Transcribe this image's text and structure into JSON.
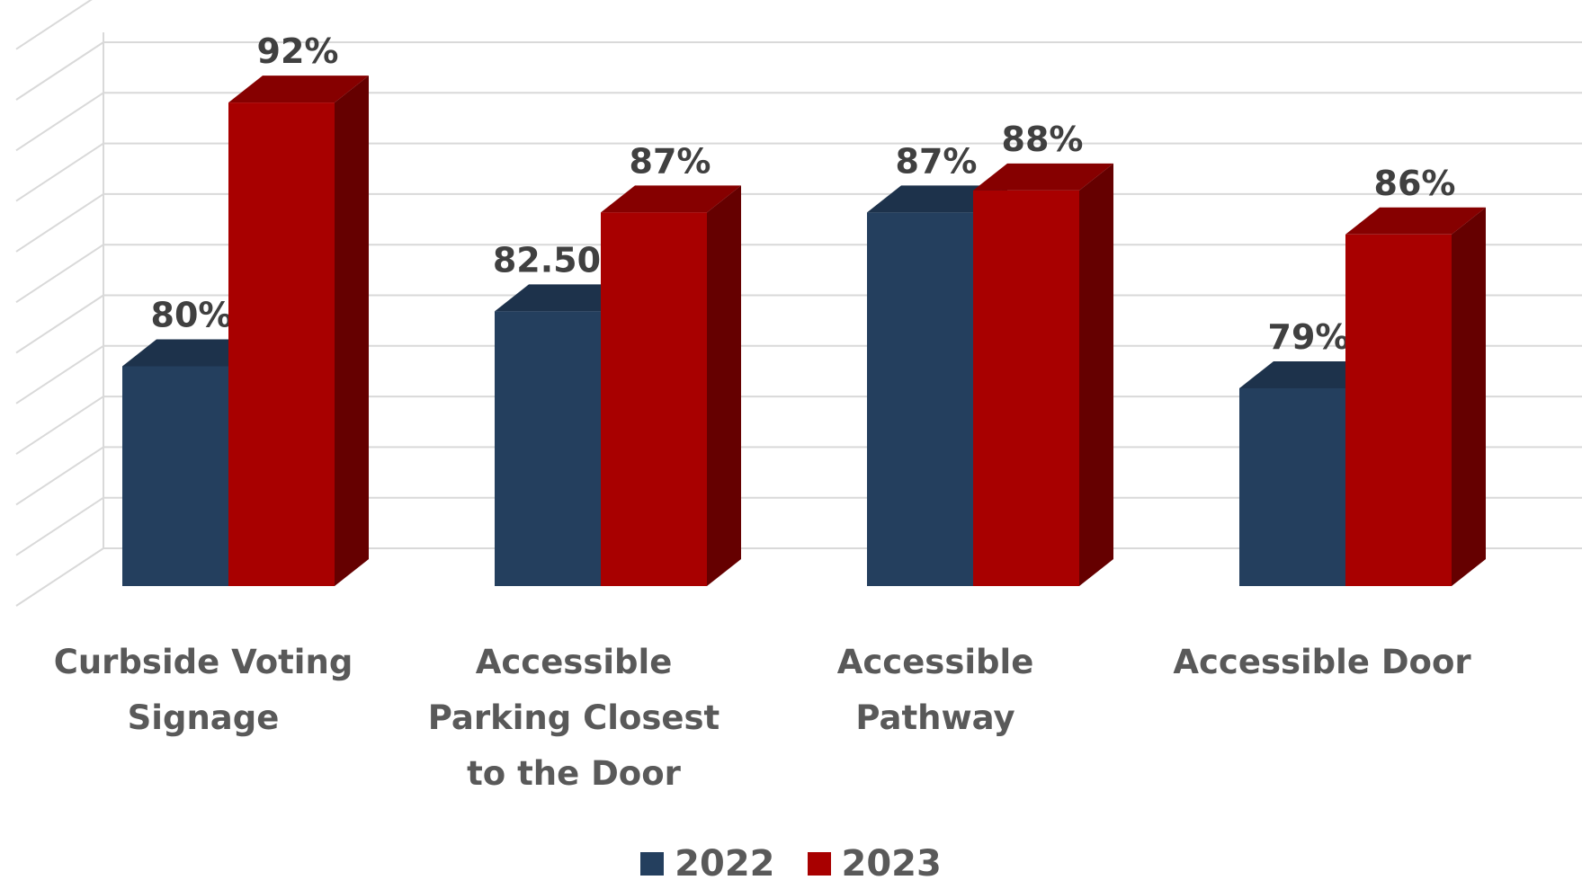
{
  "chart_data": {
    "type": "bar",
    "categories": [
      "Curbside Voting Signage",
      "Accessible Parking Closest to the Door",
      "Accessible Pathway",
      "Accessible Door"
    ],
    "series": [
      {
        "name": "2022",
        "values": [
          80,
          82.5,
          87,
          79
        ],
        "labels": [
          "80%",
          "82.50%",
          "87%",
          "79%"
        ],
        "color": "#243f5e"
      },
      {
        "name": "2023",
        "values": [
          92,
          87,
          88,
          86
        ],
        "labels": [
          "92%",
          "87%",
          "88%",
          "86%"
        ],
        "color": "#a80000"
      }
    ],
    "grid": true,
    "legend_position": "bottom",
    "style": "3d-clustered-column"
  }
}
